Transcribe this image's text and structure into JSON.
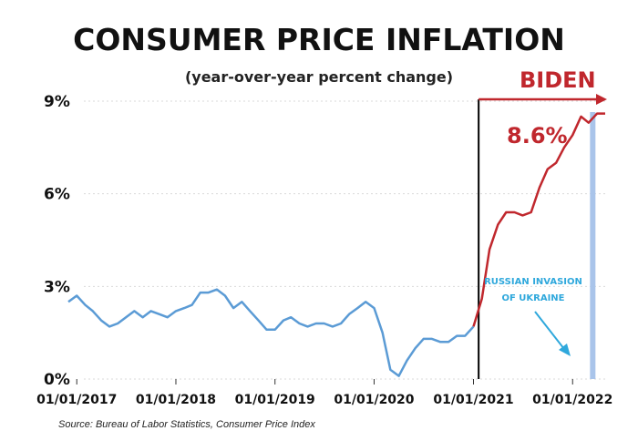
{
  "colors": {
    "line_before": "#5b9bd5",
    "line_after": "#c0272d",
    "accent_red": "#c0272d",
    "annotation_blue": "#2fa8dc",
    "invasion_band": "#a9c4ea"
  },
  "chart_data": {
    "type": "line",
    "title": "CONSUMER PRICE INFLATION",
    "subtitle": "(year-over-year percent change)",
    "xlabel": "",
    "ylabel": "",
    "ylim": [
      0,
      9
    ],
    "xlim": [
      "2016-12-01",
      "2022-05-01"
    ],
    "y_ticks": [
      {
        "value": 0,
        "label": "0%"
      },
      {
        "value": 3,
        "label": "3%"
      },
      {
        "value": 6,
        "label": "6%"
      },
      {
        "value": 9,
        "label": "9%"
      }
    ],
    "x_ticks": [
      {
        "date": "2017-01-01",
        "label": "01/01/2017"
      },
      {
        "date": "2018-01-01",
        "label": "01/01/2018"
      },
      {
        "date": "2019-01-01",
        "label": "01/01/2019"
      },
      {
        "date": "2020-01-01",
        "label": "01/01/2020"
      },
      {
        "date": "2021-01-01",
        "label": "01/01/2021"
      },
      {
        "date": "2022-01-01",
        "label": "01/01/2022"
      }
    ],
    "grid": true,
    "series": [
      {
        "name": "CPI YoY",
        "x": [
          "2016-12",
          "2017-01",
          "2017-02",
          "2017-03",
          "2017-04",
          "2017-05",
          "2017-06",
          "2017-07",
          "2017-08",
          "2017-09",
          "2017-10",
          "2017-11",
          "2017-12",
          "2018-01",
          "2018-02",
          "2018-03",
          "2018-04",
          "2018-05",
          "2018-06",
          "2018-07",
          "2018-08",
          "2018-09",
          "2018-10",
          "2018-11",
          "2018-12",
          "2019-01",
          "2019-02",
          "2019-03",
          "2019-04",
          "2019-05",
          "2019-06",
          "2019-07",
          "2019-08",
          "2019-09",
          "2019-10",
          "2019-11",
          "2019-12",
          "2020-01",
          "2020-02",
          "2020-03",
          "2020-04",
          "2020-05",
          "2020-06",
          "2020-07",
          "2020-08",
          "2020-09",
          "2020-10",
          "2020-11",
          "2020-12",
          "2021-01",
          "2021-02",
          "2021-03",
          "2021-04",
          "2021-05",
          "2021-06",
          "2021-07",
          "2021-08",
          "2021-09",
          "2021-10",
          "2021-11",
          "2021-12",
          "2022-01",
          "2022-02",
          "2022-03",
          "2022-04",
          "2022-05"
        ],
        "values": [
          2.5,
          2.7,
          2.4,
          2.2,
          1.9,
          1.7,
          1.8,
          2.0,
          2.2,
          2.0,
          2.2,
          2.1,
          2.0,
          2.2,
          2.3,
          2.4,
          2.8,
          2.8,
          2.9,
          2.7,
          2.3,
          2.5,
          2.2,
          1.9,
          1.6,
          1.6,
          1.9,
          2.0,
          1.8,
          1.7,
          1.8,
          1.8,
          1.7,
          1.8,
          2.1,
          2.3,
          2.5,
          2.3,
          1.5,
          0.3,
          0.1,
          0.6,
          1.0,
          1.3,
          1.3,
          1.2,
          1.2,
          1.4,
          1.4,
          1.7,
          2.6,
          4.2,
          5.0,
          5.4,
          5.4,
          5.3,
          5.4,
          6.2,
          6.8,
          7.0,
          7.5,
          7.9,
          8.5,
          8.3,
          8.6,
          8.6
        ]
      }
    ],
    "annotations": {
      "administration_label": "BIDEN",
      "administration_start": "2021-01-20",
      "latest_value_label": "8.6%",
      "event_label_line1": "RUSSIAN INVASION",
      "event_label_line2": "OF UKRAINE",
      "event_date": "2022-02-24"
    },
    "source": "Source: Bureau of Labor Statistics, Consumer Price Index"
  }
}
